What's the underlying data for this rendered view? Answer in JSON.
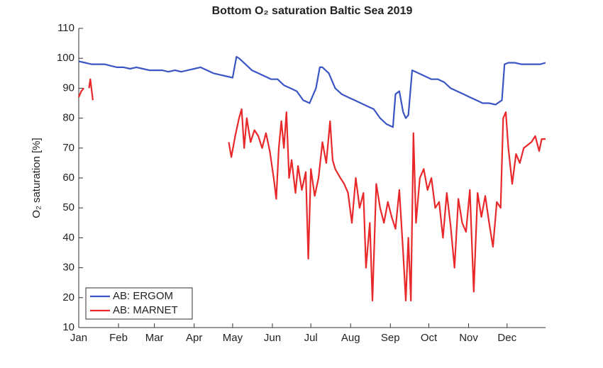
{
  "chart_data": {
    "type": "line",
    "title": "Bottom O₂ saturation Baltic Sea 2019",
    "y_label": "O₂ saturation [%]",
    "xlim": [
      1,
      365
    ],
    "xticks": [
      {
        "value": 1,
        "label": "Jan"
      },
      {
        "value": 32,
        "label": "Feb"
      },
      {
        "value": 60,
        "label": "Mar"
      },
      {
        "value": 91,
        "label": "Apr"
      },
      {
        "value": 121,
        "label": "May"
      },
      {
        "value": 152,
        "label": "Jun"
      },
      {
        "value": 182,
        "label": "Jul"
      },
      {
        "value": 213,
        "label": "Aug"
      },
      {
        "value": 244,
        "label": "Sep"
      },
      {
        "value": 274,
        "label": "Oct"
      },
      {
        "value": 305,
        "label": "Nov"
      },
      {
        "value": 335,
        "label": "Dec"
      }
    ],
    "ylim": [
      10,
      110
    ],
    "yticks": [
      10,
      20,
      30,
      40,
      50,
      60,
      70,
      80,
      90,
      100,
      110
    ],
    "legend": "lower left",
    "series": [
      {
        "name": "AB: ERGOM",
        "color": "#3a55c4",
        "x": [
          1,
          6,
          11,
          16,
          21,
          26,
          31,
          36,
          41,
          46,
          51,
          56,
          61,
          66,
          71,
          76,
          81,
          86,
          91,
          96,
          101,
          106,
          111,
          116,
          121,
          124,
          126,
          131,
          136,
          141,
          146,
          151,
          156,
          161,
          166,
          171,
          176,
          181,
          186,
          189,
          191,
          196,
          201,
          206,
          211,
          216,
          221,
          226,
          231,
          236,
          241,
          246,
          248,
          251,
          254,
          256,
          258,
          261,
          266,
          271,
          276,
          281,
          286,
          291,
          296,
          301,
          306,
          311,
          316,
          321,
          326,
          331,
          333,
          336,
          341,
          346,
          351,
          356,
          361,
          365
        ],
        "values": [
          99,
          98.5,
          98,
          98,
          98,
          97.5,
          97,
          97,
          96.5,
          97,
          96.5,
          96,
          96,
          96,
          95.5,
          96,
          95.5,
          96,
          96.5,
          97,
          96,
          95,
          94.5,
          94,
          93.5,
          100.5,
          100,
          98,
          96,
          95,
          94,
          93,
          93,
          91,
          90,
          89,
          86,
          85,
          90,
          97,
          97,
          95,
          90,
          88,
          87,
          86,
          85,
          84,
          83,
          80,
          78,
          77,
          88,
          89,
          82,
          80,
          81,
          96,
          95,
          94,
          93,
          93,
          92,
          90,
          89,
          88,
          87,
          86,
          85,
          85,
          84.5,
          86,
          98,
          98.5,
          98.5,
          98,
          98,
          98,
          98,
          98.5
        ]
      },
      {
        "name": "AB: MARNET",
        "color": "#e8282a",
        "x": [
          1,
          3,
          5,
          7,
          9,
          10,
          12,
          14,
          16,
          17,
          118,
          120,
          123,
          126,
          128,
          130,
          132,
          135,
          138,
          141,
          144,
          147,
          150,
          153,
          155,
          157,
          159,
          161,
          163,
          165,
          167,
          170,
          172,
          175,
          178,
          180,
          182,
          185,
          188,
          191,
          194,
          197,
          199,
          201,
          205,
          208,
          211,
          214,
          217,
          220,
          223,
          225,
          228,
          230,
          233,
          236,
          239,
          242,
          245,
          248,
          251,
          254,
          256,
          258,
          260,
          262,
          264,
          267,
          270,
          273,
          276,
          279,
          282,
          285,
          288,
          291,
          294,
          297,
          300,
          303,
          306,
          309,
          312,
          315,
          318,
          321,
          324,
          327,
          330,
          332,
          334,
          336,
          339,
          342,
          345,
          348,
          351,
          354,
          357,
          360,
          362,
          365
        ],
        "values": [
          87,
          89,
          90,
          null,
          90,
          93,
          86,
          null,
          92,
          null,
          72,
          67,
          74,
          80,
          83,
          70,
          80,
          72,
          76,
          74,
          70,
          75,
          69,
          60,
          53,
          70,
          79,
          70,
          82,
          60,
          66,
          55,
          64,
          56,
          62,
          33,
          63,
          54,
          60,
          72,
          65,
          79,
          66,
          63,
          60,
          58,
          55,
          45,
          60,
          50,
          55,
          30,
          45,
          19,
          58,
          50,
          45,
          52,
          47,
          43,
          56,
          35,
          19,
          40,
          19,
          75,
          45,
          60,
          63,
          56,
          60,
          50,
          52,
          40,
          55,
          44,
          30,
          53,
          45,
          42,
          56,
          22,
          55,
          47,
          54,
          45,
          37,
          52,
          50,
          80,
          82,
          70,
          58,
          68,
          65,
          70,
          71,
          72,
          74,
          69,
          73,
          73
        ]
      }
    ]
  }
}
